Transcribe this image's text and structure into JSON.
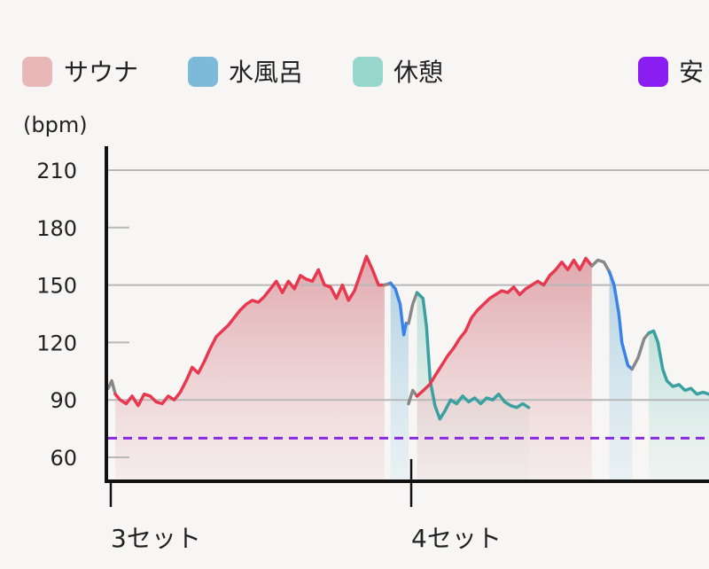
{
  "legend": [
    {
      "label": "サウナ",
      "color": "#e8b7b7"
    },
    {
      "label": "水風呂",
      "color": "#7db9d9"
    },
    {
      "label": "休憩",
      "color": "#97d6cc"
    },
    {
      "label": "安",
      "color": "#8a1df0"
    }
  ],
  "chart_data": {
    "type": "line",
    "ylabel": "(bpm)",
    "ylim": [
      45,
      225
    ],
    "yticks": [
      60,
      90,
      120,
      150,
      180,
      210
    ],
    "xlim": [
      0,
      100
    ],
    "x_markers": [
      {
        "label": "3セット",
        "x": 1
      },
      {
        "label": "4セット",
        "x": 50
      }
    ],
    "reference_line": {
      "y": 70,
      "color": "#8a2be2",
      "style": "dashed"
    },
    "colors": {
      "sauna": "#e8384f",
      "cold": "#3b82e8",
      "rest": "#3aa0a0",
      "transition": "#888888"
    },
    "phases": [
      {
        "phase": "transition",
        "points": [
          [
            0,
            96
          ],
          [
            0.6,
            100
          ],
          [
            1.2,
            93
          ]
        ]
      },
      {
        "phase": "sauna",
        "points": [
          [
            1.2,
            93
          ],
          [
            2,
            90
          ],
          [
            3,
            88
          ],
          [
            4,
            92
          ],
          [
            5,
            87
          ],
          [
            6,
            93
          ],
          [
            7,
            92
          ],
          [
            8,
            89
          ],
          [
            9,
            88
          ],
          [
            10,
            92
          ],
          [
            11,
            90
          ],
          [
            12,
            94
          ],
          [
            13,
            100
          ],
          [
            14,
            107
          ],
          [
            15,
            104
          ],
          [
            16,
            110
          ],
          [
            17,
            117
          ],
          [
            18,
            123
          ],
          [
            19,
            126
          ],
          [
            20,
            129
          ],
          [
            21,
            133
          ],
          [
            22,
            137
          ],
          [
            23,
            140
          ],
          [
            24,
            142
          ],
          [
            25,
            141
          ],
          [
            26,
            144
          ],
          [
            27,
            148
          ],
          [
            28,
            152
          ],
          [
            29,
            146
          ],
          [
            30,
            152
          ],
          [
            31,
            148
          ],
          [
            32,
            155
          ],
          [
            33,
            153
          ],
          [
            34,
            152
          ],
          [
            35,
            158
          ],
          [
            36,
            150
          ],
          [
            37,
            149
          ],
          [
            38,
            143
          ],
          [
            39,
            150
          ],
          [
            40,
            142
          ],
          [
            41,
            147
          ],
          [
            42,
            156
          ],
          [
            43,
            165
          ],
          [
            44,
            158
          ],
          [
            45,
            150
          ],
          [
            46,
            150
          ]
        ]
      },
      {
        "phase": "transition",
        "points": [
          [
            46,
            150
          ],
          [
            47,
            151
          ]
        ]
      },
      {
        "phase": "cold",
        "points": [
          [
            47,
            151
          ],
          [
            47.8,
            148
          ],
          [
            48.6,
            140
          ],
          [
            49.2,
            124
          ],
          [
            49.6,
            130
          ],
          [
            50,
            130
          ]
        ]
      },
      {
        "phase": "transition",
        "points": [
          [
            50,
            130
          ],
          [
            50.7,
            140
          ],
          [
            51.4,
            146
          ]
        ]
      },
      {
        "phase": "rest",
        "points": [
          [
            51.4,
            146
          ],
          [
            52.4,
            143
          ],
          [
            53,
            128
          ],
          [
            53.6,
            100
          ],
          [
            54.4,
            87
          ],
          [
            55.2,
            80
          ],
          [
            56,
            84
          ],
          [
            57,
            90
          ],
          [
            58,
            88
          ],
          [
            59,
            92
          ],
          [
            60,
            89
          ],
          [
            61,
            91
          ],
          [
            62,
            88
          ],
          [
            63,
            91
          ],
          [
            64,
            90
          ],
          [
            65,
            93
          ],
          [
            66,
            89
          ],
          [
            67,
            87
          ],
          [
            68,
            86
          ],
          [
            69,
            88
          ],
          [
            70,
            86
          ]
        ]
      }
    ],
    "phases_set4": [
      {
        "phase": "transition",
        "points": [
          [
            50,
            88
          ],
          [
            50.7,
            95
          ],
          [
            51.4,
            92
          ]
        ]
      },
      {
        "phase": "sauna",
        "points": [
          [
            51.4,
            92
          ],
          [
            52.5,
            95
          ],
          [
            53.5,
            98
          ],
          [
            54.5,
            103
          ],
          [
            55.5,
            108
          ],
          [
            56.5,
            113
          ],
          [
            57.5,
            117
          ],
          [
            58.5,
            122
          ],
          [
            59.5,
            126
          ],
          [
            60.5,
            133
          ],
          [
            61.5,
            137
          ],
          [
            62.5,
            140
          ],
          [
            63.5,
            143
          ],
          [
            64.5,
            145
          ],
          [
            65.5,
            147
          ],
          [
            66.5,
            146
          ],
          [
            67.5,
            149
          ],
          [
            68.5,
            145
          ],
          [
            69.5,
            148
          ],
          [
            70.5,
            150
          ],
          [
            71.5,
            152
          ],
          [
            72.5,
            150
          ],
          [
            73.5,
            155
          ],
          [
            74.5,
            158
          ],
          [
            75.5,
            162
          ],
          [
            76.5,
            158
          ],
          [
            77.5,
            163
          ],
          [
            78.5,
            158
          ],
          [
            79.5,
            164
          ],
          [
            80.5,
            160
          ]
        ]
      },
      {
        "phase": "transition",
        "points": [
          [
            80.5,
            160
          ],
          [
            81.5,
            163
          ],
          [
            82.5,
            162
          ],
          [
            83.4,
            157
          ]
        ]
      },
      {
        "phase": "cold",
        "points": [
          [
            83.4,
            157
          ],
          [
            84.2,
            150
          ],
          [
            85,
            135
          ],
          [
            85.5,
            120
          ],
          [
            86.5,
            108
          ],
          [
            87.2,
            106
          ]
        ]
      },
      {
        "phase": "transition",
        "points": [
          [
            87.2,
            106
          ],
          [
            88.2,
            112
          ],
          [
            89.2,
            122
          ],
          [
            90,
            125
          ]
        ]
      },
      {
        "phase": "rest",
        "points": [
          [
            90,
            125
          ],
          [
            90.8,
            126
          ],
          [
            91.5,
            120
          ],
          [
            92.3,
            106
          ],
          [
            93,
            100
          ],
          [
            94,
            97
          ],
          [
            95,
            98
          ],
          [
            96,
            95
          ],
          [
            97,
            96
          ],
          [
            98,
            93
          ],
          [
            99,
            94
          ],
          [
            100,
            93
          ]
        ]
      }
    ]
  }
}
